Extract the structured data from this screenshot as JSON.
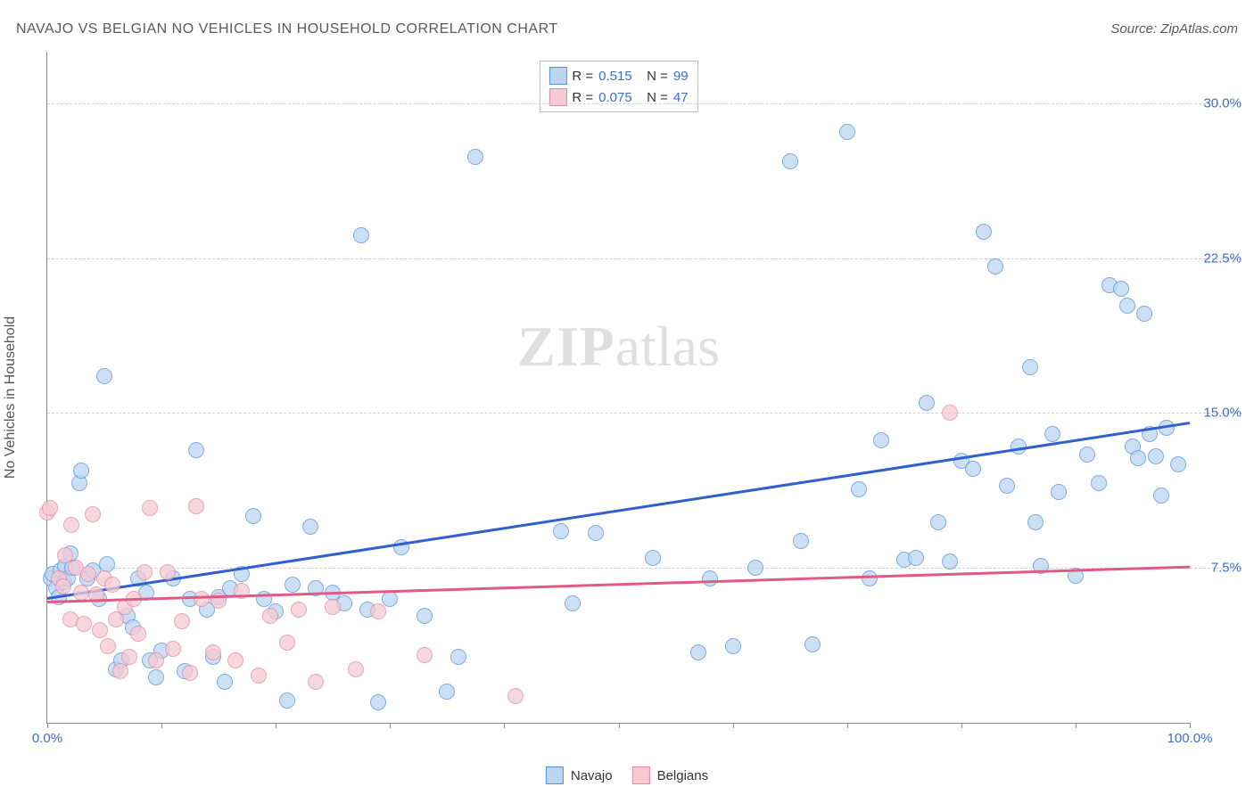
{
  "title": "NAVAJO VS BELGIAN NO VEHICLES IN HOUSEHOLD CORRELATION CHART",
  "source_prefix": "Source: ",
  "source_name": "ZipAtlas.com",
  "yaxis_title": "No Vehicles in Household",
  "watermark_a": "ZIP",
  "watermark_b": "atlas",
  "chart": {
    "type": "scatter",
    "xlim": [
      0,
      100
    ],
    "ylim": [
      0,
      32.5
    ],
    "x_ticks": [
      0,
      10,
      20,
      30,
      40,
      50,
      60,
      70,
      80,
      90,
      100
    ],
    "x_tick_labels": {
      "0": "0.0%",
      "100": "100.0%"
    },
    "y_gridlines": [
      7.5,
      15.0,
      22.5,
      30.0
    ],
    "y_tick_labels": [
      "7.5%",
      "15.0%",
      "22.5%",
      "30.0%"
    ],
    "background_color": "#ffffff",
    "grid_color": "#d0d0d0",
    "axis_color": "#888888",
    "tick_label_color": "#3b6fc9",
    "marker_radius": 9,
    "marker_border_width": 1,
    "trend_line_width": 2.5,
    "series": [
      {
        "name": "Navajo",
        "fill": "#bcd6f2",
        "stroke": "#5a8fd6",
        "r_value": "0.515",
        "n_value": "99",
        "trend": {
          "color": "#2f5fd0",
          "y_at_x0": 6.1,
          "y_at_x100": 14.6
        },
        "points": [
          [
            0.3,
            7.0
          ],
          [
            0.5,
            7.2
          ],
          [
            0.8,
            6.5
          ],
          [
            1.0,
            6.1
          ],
          [
            1.2,
            7.4
          ],
          [
            1.5,
            6.8
          ],
          [
            1.6,
            7.6
          ],
          [
            1.8,
            7.0
          ],
          [
            2.0,
            8.2
          ],
          [
            2.2,
            7.5
          ],
          [
            2.8,
            11.6
          ],
          [
            3.0,
            12.2
          ],
          [
            3.5,
            7.0
          ],
          [
            4.0,
            7.4
          ],
          [
            4.5,
            6.0
          ],
          [
            5.0,
            16.8
          ],
          [
            5.2,
            7.7
          ],
          [
            6.0,
            2.6
          ],
          [
            6.5,
            3.0
          ],
          [
            7.0,
            5.2
          ],
          [
            7.5,
            4.6
          ],
          [
            8.0,
            7.0
          ],
          [
            8.7,
            6.3
          ],
          [
            9.0,
            3.0
          ],
          [
            9.5,
            2.2
          ],
          [
            10.0,
            3.5
          ],
          [
            11.0,
            7.0
          ],
          [
            12.0,
            2.5
          ],
          [
            12.5,
            6.0
          ],
          [
            13.0,
            13.2
          ],
          [
            14.0,
            5.5
          ],
          [
            14.5,
            3.2
          ],
          [
            15.0,
            6.1
          ],
          [
            15.5,
            2.0
          ],
          [
            16.0,
            6.5
          ],
          [
            17.0,
            7.2
          ],
          [
            18.0,
            10.0
          ],
          [
            19.0,
            6.0
          ],
          [
            20.0,
            5.4
          ],
          [
            21.0,
            1.1
          ],
          [
            21.5,
            6.7
          ],
          [
            23.0,
            9.5
          ],
          [
            23.5,
            6.5
          ],
          [
            25.0,
            6.3
          ],
          [
            26.0,
            5.8
          ],
          [
            27.5,
            23.6
          ],
          [
            28.0,
            5.5
          ],
          [
            29.0,
            1.0
          ],
          [
            30.0,
            6.0
          ],
          [
            31.0,
            8.5
          ],
          [
            33.0,
            5.2
          ],
          [
            35.0,
            1.5
          ],
          [
            36.0,
            3.2
          ],
          [
            37.5,
            27.4
          ],
          [
            45.0,
            9.3
          ],
          [
            46.0,
            5.8
          ],
          [
            48.0,
            9.2
          ],
          [
            53.0,
            8.0
          ],
          [
            57.0,
            3.4
          ],
          [
            58.0,
            7.0
          ],
          [
            60.0,
            3.7
          ],
          [
            62.0,
            7.5
          ],
          [
            65.0,
            27.2
          ],
          [
            66.0,
            8.8
          ],
          [
            67.0,
            3.8
          ],
          [
            70.0,
            28.6
          ],
          [
            71.0,
            11.3
          ],
          [
            72.0,
            7.0
          ],
          [
            73.0,
            13.7
          ],
          [
            75.0,
            7.9
          ],
          [
            76.0,
            8.0
          ],
          [
            77.0,
            15.5
          ],
          [
            78.0,
            9.7
          ],
          [
            79.0,
            7.8
          ],
          [
            80.0,
            12.7
          ],
          [
            81.0,
            12.3
          ],
          [
            82.0,
            23.8
          ],
          [
            83.0,
            22.1
          ],
          [
            84.0,
            11.5
          ],
          [
            85.0,
            13.4
          ],
          [
            86.0,
            17.2
          ],
          [
            86.5,
            9.7
          ],
          [
            87.0,
            7.6
          ],
          [
            88.0,
            14.0
          ],
          [
            88.5,
            11.2
          ],
          [
            90.0,
            7.1
          ],
          [
            91.0,
            13.0
          ],
          [
            92.0,
            11.6
          ],
          [
            93.0,
            21.2
          ],
          [
            94.0,
            21.0
          ],
          [
            94.5,
            20.2
          ],
          [
            95.0,
            13.4
          ],
          [
            95.5,
            12.8
          ],
          [
            96.0,
            19.8
          ],
          [
            96.5,
            14.0
          ],
          [
            97.0,
            12.9
          ],
          [
            97.5,
            11.0
          ],
          [
            98.0,
            14.3
          ],
          [
            99.0,
            12.5
          ]
        ]
      },
      {
        "name": "Belgians",
        "fill": "#f6c9d3",
        "stroke": "#e08aa0",
        "r_value": "0.075",
        "n_value": "47",
        "trend": {
          "color": "#e05a84",
          "y_at_x0": 5.9,
          "y_at_x100": 7.6
        },
        "points": [
          [
            0.0,
            10.2
          ],
          [
            0.2,
            10.4
          ],
          [
            1.0,
            7.0
          ],
          [
            1.4,
            6.6
          ],
          [
            1.6,
            8.1
          ],
          [
            2.0,
            5.0
          ],
          [
            2.1,
            9.6
          ],
          [
            2.5,
            7.5
          ],
          [
            3.0,
            6.3
          ],
          [
            3.2,
            4.8
          ],
          [
            3.6,
            7.2
          ],
          [
            4.0,
            10.1
          ],
          [
            4.3,
            6.2
          ],
          [
            4.6,
            4.5
          ],
          [
            5.0,
            7.0
          ],
          [
            5.3,
            3.7
          ],
          [
            5.7,
            6.7
          ],
          [
            6.0,
            5.0
          ],
          [
            6.4,
            2.5
          ],
          [
            6.8,
            5.6
          ],
          [
            7.2,
            3.2
          ],
          [
            7.6,
            6.0
          ],
          [
            8.0,
            4.3
          ],
          [
            8.5,
            7.3
          ],
          [
            9.0,
            10.4
          ],
          [
            9.5,
            3.0
          ],
          [
            10.5,
            7.3
          ],
          [
            11.0,
            3.6
          ],
          [
            11.8,
            4.9
          ],
          [
            12.5,
            2.4
          ],
          [
            13.0,
            10.5
          ],
          [
            13.5,
            6.0
          ],
          [
            14.5,
            3.4
          ],
          [
            15.0,
            5.9
          ],
          [
            16.5,
            3.0
          ],
          [
            17.0,
            6.4
          ],
          [
            18.5,
            2.3
          ],
          [
            19.5,
            5.2
          ],
          [
            21.0,
            3.9
          ],
          [
            22.0,
            5.5
          ],
          [
            23.5,
            2.0
          ],
          [
            25.0,
            5.6
          ],
          [
            27.0,
            2.6
          ],
          [
            29.0,
            5.4
          ],
          [
            33.0,
            3.3
          ],
          [
            41.0,
            1.3
          ],
          [
            79.0,
            15.0
          ]
        ]
      }
    ]
  },
  "legend_top": {
    "r_label": "R",
    "n_label": "N",
    "eq": "="
  },
  "legend_bottom_labels": [
    "Navajo",
    "Belgians"
  ]
}
